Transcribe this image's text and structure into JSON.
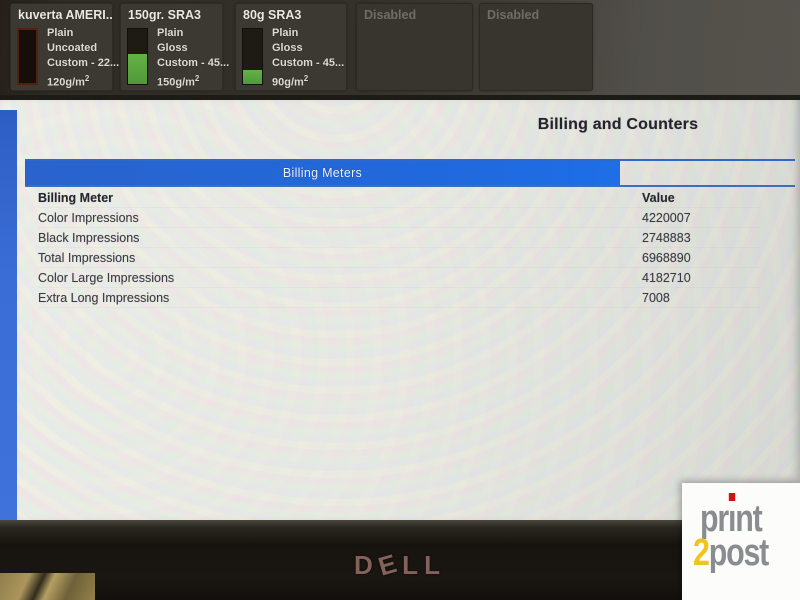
{
  "top_bar": {
    "trays": [
      {
        "name": "kuverta AMERI...",
        "lines": [
          "Plain",
          "Uncoated",
          "Custom - 22..."
        ],
        "weight": "120g/m",
        "weight_sup": "2",
        "fill_pct": 0,
        "state": "empty"
      },
      {
        "name": "150gr. SRA3",
        "lines": [
          "Plain",
          "Gloss",
          "Custom - 45..."
        ],
        "weight": "150g/m",
        "weight_sup": "2",
        "fill_pct": 54,
        "state": "ok"
      },
      {
        "name": "80g SRA3",
        "lines": [
          "Plain",
          "Gloss",
          "Custom - 45..."
        ],
        "weight": "90g/m",
        "weight_sup": "2",
        "fill_pct": 26,
        "state": "ok"
      },
      {
        "name": "Disabled",
        "state": "disabled"
      },
      {
        "name": "Disabled",
        "state": "disabled"
      }
    ]
  },
  "screen": {
    "title": "Billing and Counters",
    "tab": {
      "label": "Billing Meters"
    },
    "table": {
      "columns": [
        "Billing Meter",
        "Value"
      ],
      "rows": [
        {
          "meter": "Color Impressions",
          "value": "4220007"
        },
        {
          "meter": "Black Impressions",
          "value": "2748883"
        },
        {
          "meter": "Total Impressions",
          "value": "6968890"
        },
        {
          "meter": "Color Large Impressions",
          "value": "4182710"
        },
        {
          "meter": "Extra Long Impressions",
          "value": "7008"
        }
      ]
    }
  },
  "monitor": {
    "brand_letters": [
      "D",
      "E",
      "L",
      "L"
    ]
  },
  "watermark": {
    "line1_pre": "pr",
    "line1_i": "ı",
    "line1_post": "nt",
    "line2_num": "2",
    "line2_word": "post"
  },
  "colors": {
    "accent_blue": "#2069dd",
    "tray_green": "#58a53c",
    "empty_tray_border": "#55200f",
    "logo_red": "#cf1512",
    "logo_yellow": "#eec41d",
    "logo_gray": "#8a8d8f"
  }
}
